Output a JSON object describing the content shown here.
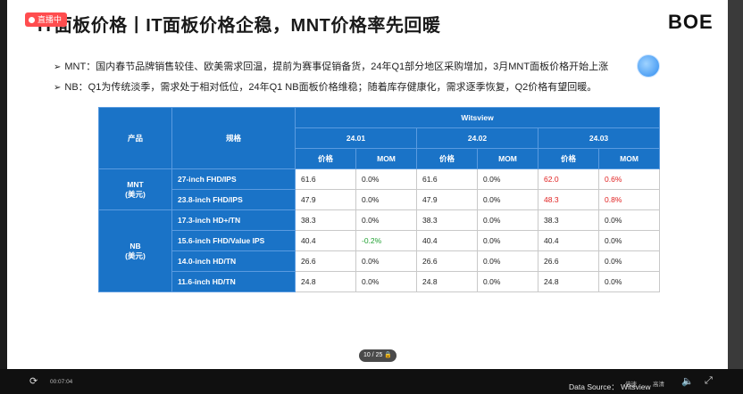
{
  "live_badge": "直播中",
  "title": "IT面板价格丨IT面板价格企稳，MNT价格率先回暖",
  "logo": "BOE",
  "bullets": [
    "MNT：国内春节品牌销售较佳、欧美需求回温，提前为赛事促销备货，24年Q1部分地区采购增加，3月MNT面板价格开始上涨",
    "NB：Q1为传统淡季，需求处于相对低位，24年Q1 NB面板价格维稳；随着库存健康化，需求逐季恢复，Q2价格有望回暖。"
  ],
  "table": {
    "col_product": "产品",
    "col_spec": "规格",
    "source_header": "Witsview",
    "periods": [
      "24.01",
      "24.02",
      "24.03"
    ],
    "sub_price": "价格",
    "sub_mom": "MOM",
    "group_mnt": "MNT\n(美元)",
    "group_nb": "NB\n(美元)",
    "rows": [
      {
        "spec": "27-inch FHD/IPS",
        "v1": "61.6",
        "m1": "0.0%",
        "v2": "61.6",
        "m2": "0.0%",
        "v3": "62.0",
        "m3": "0.6%"
      },
      {
        "spec": "23.8-inch FHD/IPS",
        "v1": "47.9",
        "m1": "0.0%",
        "v2": "47.9",
        "m2": "0.0%",
        "v3": "48.3",
        "m3": "0.8%"
      },
      {
        "spec": "17.3-inch HD+/TN",
        "v1": "38.3",
        "m1": "0.0%",
        "v2": "38.3",
        "m2": "0.0%",
        "v3": "38.3",
        "m3": "0.0%"
      },
      {
        "spec": "15.6-inch FHD/Value IPS",
        "v1": "40.4",
        "m1": "-0.2%",
        "v2": "40.4",
        "m2": "0.0%",
        "v3": "40.4",
        "m3": "0.0%"
      },
      {
        "spec": "14.0-inch HD/TN",
        "v1": "26.6",
        "m1": "0.0%",
        "v2": "26.6",
        "m2": "0.0%",
        "v3": "26.6",
        "m3": "0.0%"
      },
      {
        "spec": "11.6-inch HD/TN",
        "v1": "24.8",
        "m1": "0.0%",
        "v2": "24.8",
        "m2": "0.0%",
        "v3": "24.8",
        "m3": "0.0%"
      }
    ]
  },
  "page_indicator": "10 / 25",
  "data_source": "Data Source： Witsview",
  "player": {
    "time": "00:07:04",
    "quality": "高清",
    "speed": "倍速",
    "colors": {
      "accent_red": "#e02020",
      "accent_green": "#22a033",
      "header_blue": "#1a73c7"
    }
  }
}
